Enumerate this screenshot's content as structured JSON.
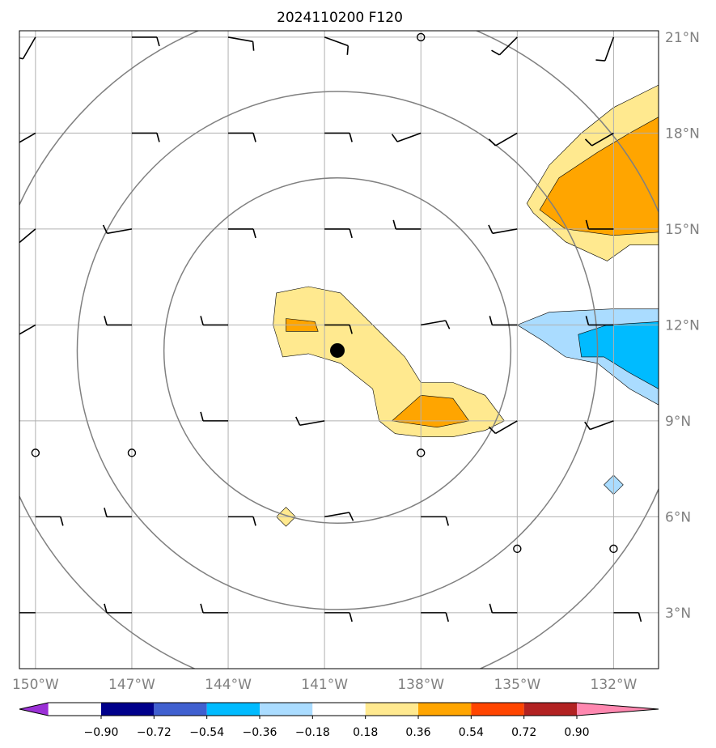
{
  "title": "2024110200 F120",
  "map": {
    "lon_range": [
      -150.5,
      -130.6
    ],
    "lat_range": [
      1.25,
      21.2
    ],
    "lon_ticks": [
      {
        "lon": -150,
        "label": "150°W"
      },
      {
        "lon": -147,
        "label": "147°W"
      },
      {
        "lon": -144,
        "label": "144°W"
      },
      {
        "lon": -141,
        "label": "141°W"
      },
      {
        "lon": -138,
        "label": "138°W"
      },
      {
        "lon": -135,
        "label": "135°W"
      },
      {
        "lon": -132,
        "label": "132°W"
      }
    ],
    "lat_ticks": [
      {
        "lat": 3,
        "label": "3°N"
      },
      {
        "lat": 6,
        "label": "6°N"
      },
      {
        "lat": 9,
        "label": "9°N"
      },
      {
        "lat": 12,
        "label": "12°N"
      },
      {
        "lat": 15,
        "label": "15°N"
      },
      {
        "lat": 18,
        "label": "18°N"
      },
      {
        "lat": 21,
        "label": "21°N"
      }
    ],
    "storm_center": {
      "lon": -140.6,
      "lat": 11.2
    },
    "range_rings": {
      "radii_deg": [
        5.4,
        8.1,
        10.9
      ],
      "color": "#808080"
    },
    "gridline_color": "#b0b0b0",
    "shaded_regions": [
      {
        "level": "0.18-0.36",
        "color": "#ffe98f",
        "points": [
          [
            -142.5,
            13
          ],
          [
            -141.5,
            13.2
          ],
          [
            -140.5,
            13
          ],
          [
            -139.5,
            12
          ],
          [
            -138.5,
            11
          ],
          [
            -138,
            10.2
          ],
          [
            -137,
            10.2
          ],
          [
            -136,
            9.8
          ],
          [
            -135.4,
            9
          ],
          [
            -136,
            8.7
          ],
          [
            -137,
            8.5
          ],
          [
            -138,
            8.5
          ],
          [
            -138.8,
            8.6
          ],
          [
            -139.3,
            9
          ],
          [
            -139.5,
            10
          ],
          [
            -140.5,
            10.8
          ],
          [
            -141.5,
            11.1
          ],
          [
            -142.3,
            11
          ],
          [
            -142.6,
            12
          ]
        ]
      },
      {
        "level": "0.36-0.54",
        "color": "#ffa500",
        "points": [
          [
            -142.2,
            12.2
          ],
          [
            -141.3,
            12.1
          ],
          [
            -141.2,
            11.8
          ],
          [
            -142.2,
            11.8
          ]
        ]
      },
      {
        "level": "0.36-0.54",
        "color": "#ffa500",
        "points": [
          [
            -138.9,
            9
          ],
          [
            -138,
            9.8
          ],
          [
            -137,
            9.7
          ],
          [
            -136.5,
            9
          ],
          [
            -137.5,
            8.8
          ]
        ]
      },
      {
        "level": "0.18-0.36",
        "color": "#ffe98f",
        "points": [
          [
            -142.5,
            6
          ],
          [
            -142.2,
            6.3
          ],
          [
            -141.9,
            6
          ],
          [
            -142.2,
            5.7
          ]
        ]
      },
      {
        "level": "0.18-0.36",
        "color": "#ffe98f",
        "points": [
          [
            -134.7,
            15.8
          ],
          [
            -134,
            17
          ],
          [
            -133,
            18
          ],
          [
            -132,
            18.8
          ],
          [
            -130.6,
            19.5
          ],
          [
            -130.6,
            14.5
          ],
          [
            -131.5,
            14.5
          ],
          [
            -132.2,
            14
          ],
          [
            -133.5,
            14.6
          ],
          [
            -134.5,
            15.5
          ]
        ]
      },
      {
        "level": "0.36-0.54",
        "color": "#ffa500",
        "points": [
          [
            -134.3,
            15.6
          ],
          [
            -133.7,
            16.6
          ],
          [
            -132.5,
            17.4
          ],
          [
            -131.5,
            18
          ],
          [
            -130.6,
            18.5
          ],
          [
            -130.6,
            14.9
          ],
          [
            -132,
            14.8
          ],
          [
            -133.5,
            15
          ]
        ]
      },
      {
        "level": "-0.36--0.18",
        "color": "#aadcff",
        "points": [
          [
            -135,
            12
          ],
          [
            -134,
            12.4
          ],
          [
            -132,
            12.5
          ],
          [
            -130.6,
            12.5
          ],
          [
            -130.6,
            9.5
          ],
          [
            -131.5,
            10
          ],
          [
            -132.5,
            10.8
          ],
          [
            -133.5,
            11
          ],
          [
            -134.2,
            11.5
          ]
        ]
      },
      {
        "level": "-0.54--0.36",
        "color": "#00bbff",
        "points": [
          [
            -133.1,
            11.7
          ],
          [
            -132.2,
            12
          ],
          [
            -130.6,
            12.1
          ],
          [
            -130.6,
            10
          ],
          [
            -131.5,
            10.5
          ],
          [
            -132.3,
            11
          ],
          [
            -133,
            11
          ]
        ]
      },
      {
        "level": "-0.36--0.18",
        "color": "#aadcff",
        "points": [
          [
            -132,
            7.3
          ],
          [
            -131.7,
            7
          ],
          [
            -132,
            6.7
          ],
          [
            -132.3,
            7
          ]
        ]
      }
    ],
    "calm_markers": [
      [
        -138,
        21
      ],
      [
        -150,
        8
      ],
      [
        -147,
        8
      ],
      [
        -138,
        8
      ],
      [
        -135,
        5
      ],
      [
        -132,
        5
      ]
    ],
    "wind_barbs": [
      [
        -150,
        21,
        210
      ],
      [
        -147,
        21,
        90
      ],
      [
        -144,
        21,
        100
      ],
      [
        -141,
        21,
        110
      ],
      [
        -135,
        21,
        225
      ],
      [
        -132,
        21,
        200
      ],
      [
        -150,
        18,
        240
      ],
      [
        -147,
        18,
        90
      ],
      [
        -144,
        18,
        90
      ],
      [
        -141,
        18,
        90
      ],
      [
        -138,
        18,
        250
      ],
      [
        -135,
        18,
        240
      ],
      [
        -132,
        18,
        240
      ],
      [
        -150,
        15,
        230
      ],
      [
        -147,
        15,
        260
      ],
      [
        -144,
        15,
        90
      ],
      [
        -141,
        15,
        90
      ],
      [
        -138,
        15,
        270
      ],
      [
        -135,
        15,
        260
      ],
      [
        -132,
        15,
        270
      ],
      [
        -150,
        12,
        240
      ],
      [
        -147,
        12,
        270
      ],
      [
        -144,
        12,
        270
      ],
      [
        -141,
        12,
        90
      ],
      [
        -138,
        12,
        80
      ],
      [
        -135,
        12,
        270
      ],
      [
        -132,
        12,
        270
      ],
      [
        -144,
        9,
        270
      ],
      [
        -141,
        9,
        260
      ],
      [
        -135,
        9,
        240
      ],
      [
        -132,
        9,
        250
      ],
      [
        -150,
        6,
        90
      ],
      [
        -147,
        6,
        270
      ],
      [
        -144,
        6,
        90
      ],
      [
        -141,
        6,
        80
      ],
      [
        -138,
        6,
        90
      ],
      [
        -150,
        3,
        270
      ],
      [
        -147,
        3,
        270
      ],
      [
        -144,
        3,
        270
      ],
      [
        -141,
        3,
        90
      ],
      [
        -138,
        3,
        90
      ],
      [
        -135,
        3,
        270
      ],
      [
        -132,
        3,
        90
      ]
    ]
  },
  "colorbar": {
    "colors": [
      "#9b30d6",
      "#00008b",
      "#4060d0",
      "#00bbff",
      "#aadcff",
      "#ffffff",
      "#ffe98f",
      "#ffa500",
      "#ff4500",
      "#b22222",
      "#ff88b0"
    ],
    "labels": [
      "−0.90",
      "−0.72",
      "−0.54",
      "−0.36",
      "−0.18",
      "0.18",
      "0.36",
      "0.54",
      "0.72",
      "0.90"
    ]
  }
}
